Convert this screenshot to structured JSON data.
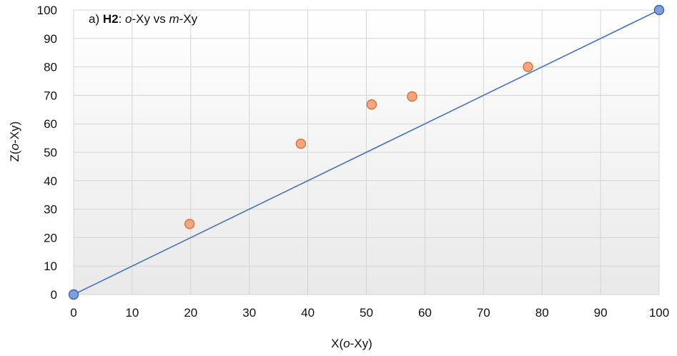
{
  "chart_data": {
    "type": "scatter",
    "title": "",
    "annotation": {
      "prefix": "a) ",
      "bold": "H2",
      "sep": ": ",
      "italic1": "o",
      "mid": "-Xy vs ",
      "italic2": "m",
      "suffix": "-Xy"
    },
    "xlabel": {
      "pre": "X(",
      "italic": "o",
      "post": "-Xy)"
    },
    "ylabel": {
      "pre": "Z(",
      "italic": "o",
      "post": "-Xy)"
    },
    "xlim": [
      0,
      100
    ],
    "ylim": [
      0,
      100
    ],
    "xticks": [
      0,
      10,
      20,
      30,
      40,
      50,
      60,
      70,
      80,
      90,
      100
    ],
    "yticks": [
      0,
      10,
      20,
      30,
      40,
      50,
      60,
      70,
      80,
      90,
      100
    ],
    "grid": true,
    "series": [
      {
        "kind": "line",
        "color": "#4472C4",
        "points": [
          {
            "x": 0,
            "y": 0
          },
          {
            "x": 100,
            "y": 100
          }
        ]
      },
      {
        "kind": "scatter",
        "color": "#F4A582",
        "edge": "#E07030",
        "points": [
          {
            "x": 19.8,
            "y": 24.8
          },
          {
            "x": 38.8,
            "y": 53.0
          },
          {
            "x": 50.9,
            "y": 66.8
          },
          {
            "x": 57.8,
            "y": 69.6
          },
          {
            "x": 77.6,
            "y": 80.0
          }
        ]
      },
      {
        "kind": "scatter",
        "color": "#7F9EDC",
        "edge": "#3F62B0",
        "points": [
          {
            "x": 0,
            "y": 0
          },
          {
            "x": 100,
            "y": 100
          }
        ]
      }
    ]
  }
}
